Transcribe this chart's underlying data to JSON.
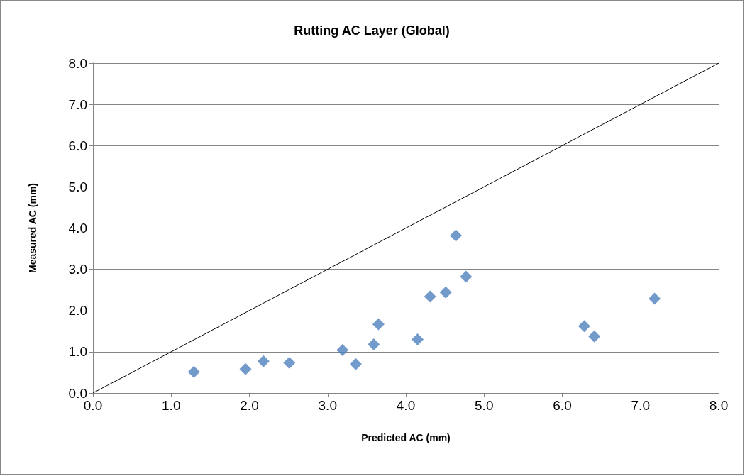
{
  "chart_data": {
    "type": "scatter",
    "title": "Rutting AC Layer (Global)",
    "xlabel": "Predicted AC (mm)",
    "ylabel": "Measured AC (mm)",
    "xlim": [
      0,
      8
    ],
    "ylim": [
      0,
      8
    ],
    "xticks": [
      {
        "value": 0,
        "label": "0.0"
      },
      {
        "value": 1,
        "label": "1.0"
      },
      {
        "value": 2,
        "label": "2.0"
      },
      {
        "value": 3,
        "label": "3.0"
      },
      {
        "value": 4,
        "label": "4.0"
      },
      {
        "value": 5,
        "label": "5.0"
      },
      {
        "value": 6,
        "label": "6.0"
      },
      {
        "value": 7,
        "label": "7.0"
      },
      {
        "value": 8,
        "label": "8.0"
      }
    ],
    "yticks": [
      {
        "value": 0,
        "label": "0.0"
      },
      {
        "value": 1,
        "label": "1.0"
      },
      {
        "value": 2,
        "label": "2.0"
      },
      {
        "value": 3,
        "label": "3.0"
      },
      {
        "value": 4,
        "label": "4.0"
      },
      {
        "value": 5,
        "label": "5.0"
      },
      {
        "value": 6,
        "label": "6.0"
      },
      {
        "value": 7,
        "label": "7.0"
      },
      {
        "value": 8,
        "label": "8.0"
      }
    ],
    "grid": "y",
    "marker": "diamond",
    "series": [
      {
        "color": "#4f81bd",
        "x": [
          1.29,
          1.95,
          2.18,
          2.51,
          3.19,
          3.36,
          3.59,
          3.65,
          4.15,
          4.31,
          4.51,
          4.64,
          4.77,
          6.28,
          6.41,
          7.18
        ],
        "values": [
          0.51,
          0.58,
          0.77,
          0.73,
          1.04,
          0.7,
          1.18,
          1.67,
          1.3,
          2.34,
          2.44,
          3.82,
          2.82,
          1.62,
          1.37,
          2.29
        ]
      },
      {
        "type": "line",
        "color": "#000000",
        "marker": "none",
        "line_style": "solid",
        "x": [
          0,
          8
        ],
        "values": [
          0,
          8
        ]
      }
    ]
  }
}
